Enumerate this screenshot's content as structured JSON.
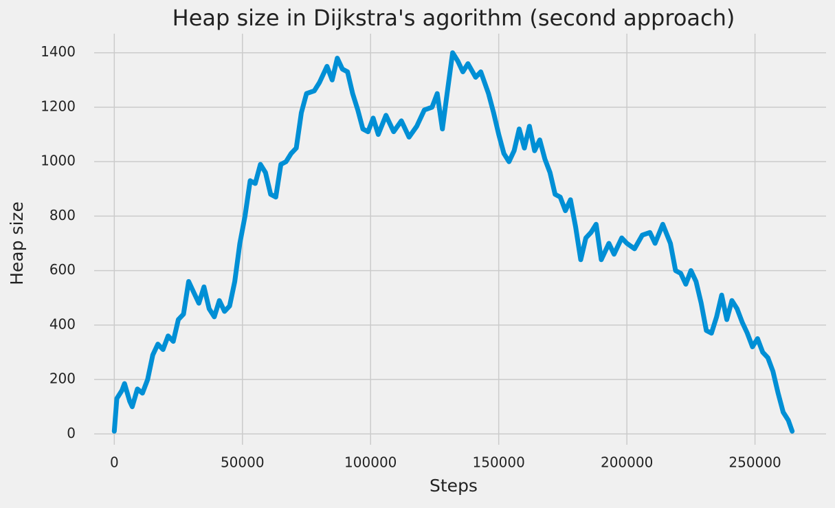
{
  "chart_data": {
    "type": "line",
    "title": "Heap size in Dijkstra's agorithm (second approach)",
    "x_label": "Steps",
    "y_label": "Heap size",
    "x": [
      0,
      1000,
      3000,
      4000,
      6000,
      7000,
      9000,
      11000,
      13000,
      15000,
      17000,
      19000,
      21000,
      23000,
      25000,
      27000,
      29000,
      31000,
      33000,
      35000,
      37000,
      39000,
      41000,
      43000,
      45000,
      47000,
      49000,
      51000,
      53000,
      55000,
      57000,
      59000,
      61000,
      63000,
      65000,
      67000,
      69000,
      71000,
      73000,
      75000,
      78000,
      80000,
      83000,
      85000,
      87000,
      89000,
      91000,
      93000,
      95000,
      97000,
      99000,
      101000,
      103000,
      106000,
      109000,
      112000,
      115000,
      118000,
      121000,
      124000,
      126000,
      128000,
      130000,
      132000,
      134000,
      136000,
      138000,
      141000,
      143000,
      146000,
      148000,
      150000,
      152000,
      154000,
      156000,
      158000,
      160000,
      162000,
      164000,
      166000,
      168000,
      170000,
      172000,
      174000,
      176000,
      178000,
      180000,
      182000,
      184000,
      186000,
      188000,
      190000,
      193000,
      195000,
      198000,
      200000,
      203000,
      206000,
      209000,
      211000,
      214000,
      217000,
      219000,
      221000,
      223000,
      225000,
      227000,
      229000,
      231000,
      233000,
      235000,
      237000,
      239000,
      241000,
      243000,
      245000,
      247000,
      249000,
      251000,
      253000,
      255000,
      257000,
      259000,
      261000,
      263000,
      264500
    ],
    "series": [
      {
        "name": "Heap size",
        "color": "#008fd5",
        "values": [
          10,
          130,
          160,
          185,
          120,
          100,
          165,
          150,
          200,
          290,
          330,
          310,
          360,
          340,
          420,
          440,
          560,
          520,
          480,
          540,
          460,
          430,
          490,
          450,
          470,
          560,
          700,
          800,
          930,
          920,
          990,
          960,
          880,
          870,
          990,
          1000,
          1030,
          1050,
          1180,
          1250,
          1260,
          1290,
          1350,
          1300,
          1380,
          1340,
          1330,
          1250,
          1190,
          1120,
          1110,
          1160,
          1100,
          1170,
          1110,
          1150,
          1090,
          1130,
          1190,
          1200,
          1250,
          1120,
          1260,
          1400,
          1370,
          1330,
          1360,
          1310,
          1330,
          1250,
          1180,
          1100,
          1030,
          1000,
          1040,
          1120,
          1050,
          1130,
          1040,
          1080,
          1010,
          960,
          880,
          870,
          820,
          860,
          760,
          640,
          720,
          740,
          770,
          640,
          700,
          660,
          720,
          700,
          680,
          730,
          740,
          700,
          770,
          700,
          600,
          590,
          550,
          600,
          560,
          480,
          380,
          370,
          430,
          510,
          420,
          490,
          460,
          410,
          370,
          320,
          350,
          300,
          280,
          230,
          150,
          80,
          50,
          10
        ]
      }
    ],
    "xlim": [
      -13225,
      277725
    ],
    "ylim": [
      -70,
      1470
    ],
    "xticks": [
      0,
      50000,
      100000,
      150000,
      200000,
      250000
    ],
    "yticks": [
      0,
      200,
      400,
      600,
      800,
      1000,
      1200,
      1400
    ],
    "grid": true
  }
}
